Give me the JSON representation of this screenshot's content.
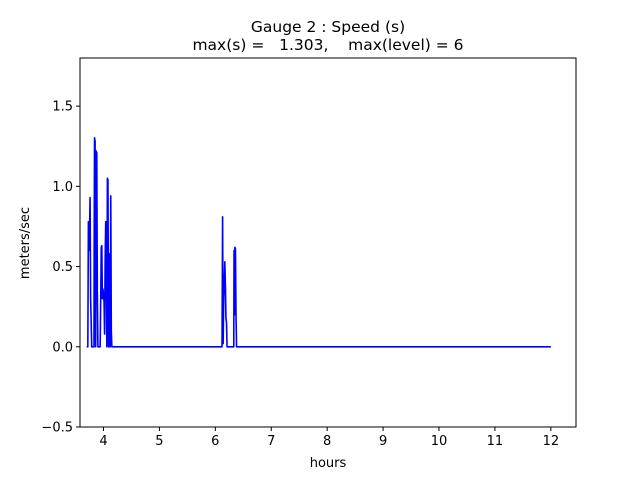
{
  "chart_data": {
    "type": "line",
    "title": "Gauge 2 : Speed (s)",
    "subtitle": "max(s) =   1.303,    max(level) = 6",
    "xlabel": "hours",
    "ylabel": "meters/sec",
    "xlim": [
      3.58,
      12.45
    ],
    "ylim": [
      -0.5,
      1.8
    ],
    "xticks": [
      4,
      5,
      6,
      7,
      8,
      9,
      10,
      11,
      12
    ],
    "yticks": [
      -0.5,
      0.0,
      0.5,
      1.0,
      1.5
    ],
    "ytick_labels": [
      "−0.5",
      "0.0",
      "0.5",
      "1.0",
      "1.5"
    ],
    "grid": false,
    "series": [
      {
        "color": "#0000ff",
        "x": [
          3.7,
          3.72,
          3.73,
          3.745,
          3.76,
          3.77,
          3.79,
          3.81,
          3.83,
          3.835,
          3.84,
          3.85,
          3.855,
          3.86,
          3.865,
          3.87,
          3.875,
          3.88,
          3.89,
          3.9,
          3.905,
          3.91,
          3.92,
          3.93,
          3.94,
          3.95,
          3.96,
          3.97,
          3.98,
          3.99,
          4.0,
          4.01,
          4.02,
          4.03,
          4.04,
          4.05,
          4.06,
          4.07,
          4.08,
          4.09,
          4.1,
          4.11,
          4.12,
          4.13,
          4.14,
          4.15,
          4.16,
          4.17,
          4.18,
          4.19,
          4.2,
          4.21,
          4.22,
          4.23,
          4.24,
          4.25,
          4.26,
          6.1,
          6.12,
          6.13,
          6.14,
          6.15,
          6.16,
          6.17,
          6.18,
          6.19,
          6.2,
          6.21,
          6.22,
          6.23,
          6.24,
          6.25,
          6.27,
          6.3,
          6.32,
          6.33,
          6.335,
          6.34,
          6.345,
          6.35,
          6.36,
          6.37,
          6.38,
          6.4,
          12.0
        ],
        "y": [
          0.0,
          0.0,
          0.78,
          0.6,
          0.93,
          0.3,
          0.0,
          0.0,
          0.0,
          0.8,
          1.303,
          1.28,
          0.4,
          0.0,
          0.7,
          1.22,
          1.1,
          1.21,
          0.35,
          0.0,
          0.0,
          0.0,
          0.0,
          0.0,
          0.0,
          0.27,
          0.62,
          0.63,
          0.3,
          0.36,
          0.33,
          0.28,
          0.08,
          0.55,
          0.78,
          0.45,
          0.0,
          1.05,
          1.04,
          0.0,
          0.0,
          0.58,
          0.0,
          0.94,
          0.1,
          0.0,
          0.0,
          0.0,
          0.0,
          0.0,
          0.0,
          0.0,
          0.0,
          0.0,
          0.0,
          0.0,
          0.0,
          0.0,
          0.0,
          0.81,
          0.02,
          0.3,
          0.4,
          0.53,
          0.38,
          0.18,
          0.15,
          0.0,
          0.0,
          0.0,
          0.0,
          0.0,
          0.0,
          0.0,
          0.0,
          0.0,
          0.6,
          0.55,
          0.2,
          0.62,
          0.61,
          0.2,
          0.0,
          0.0,
          0.0
        ]
      }
    ]
  }
}
